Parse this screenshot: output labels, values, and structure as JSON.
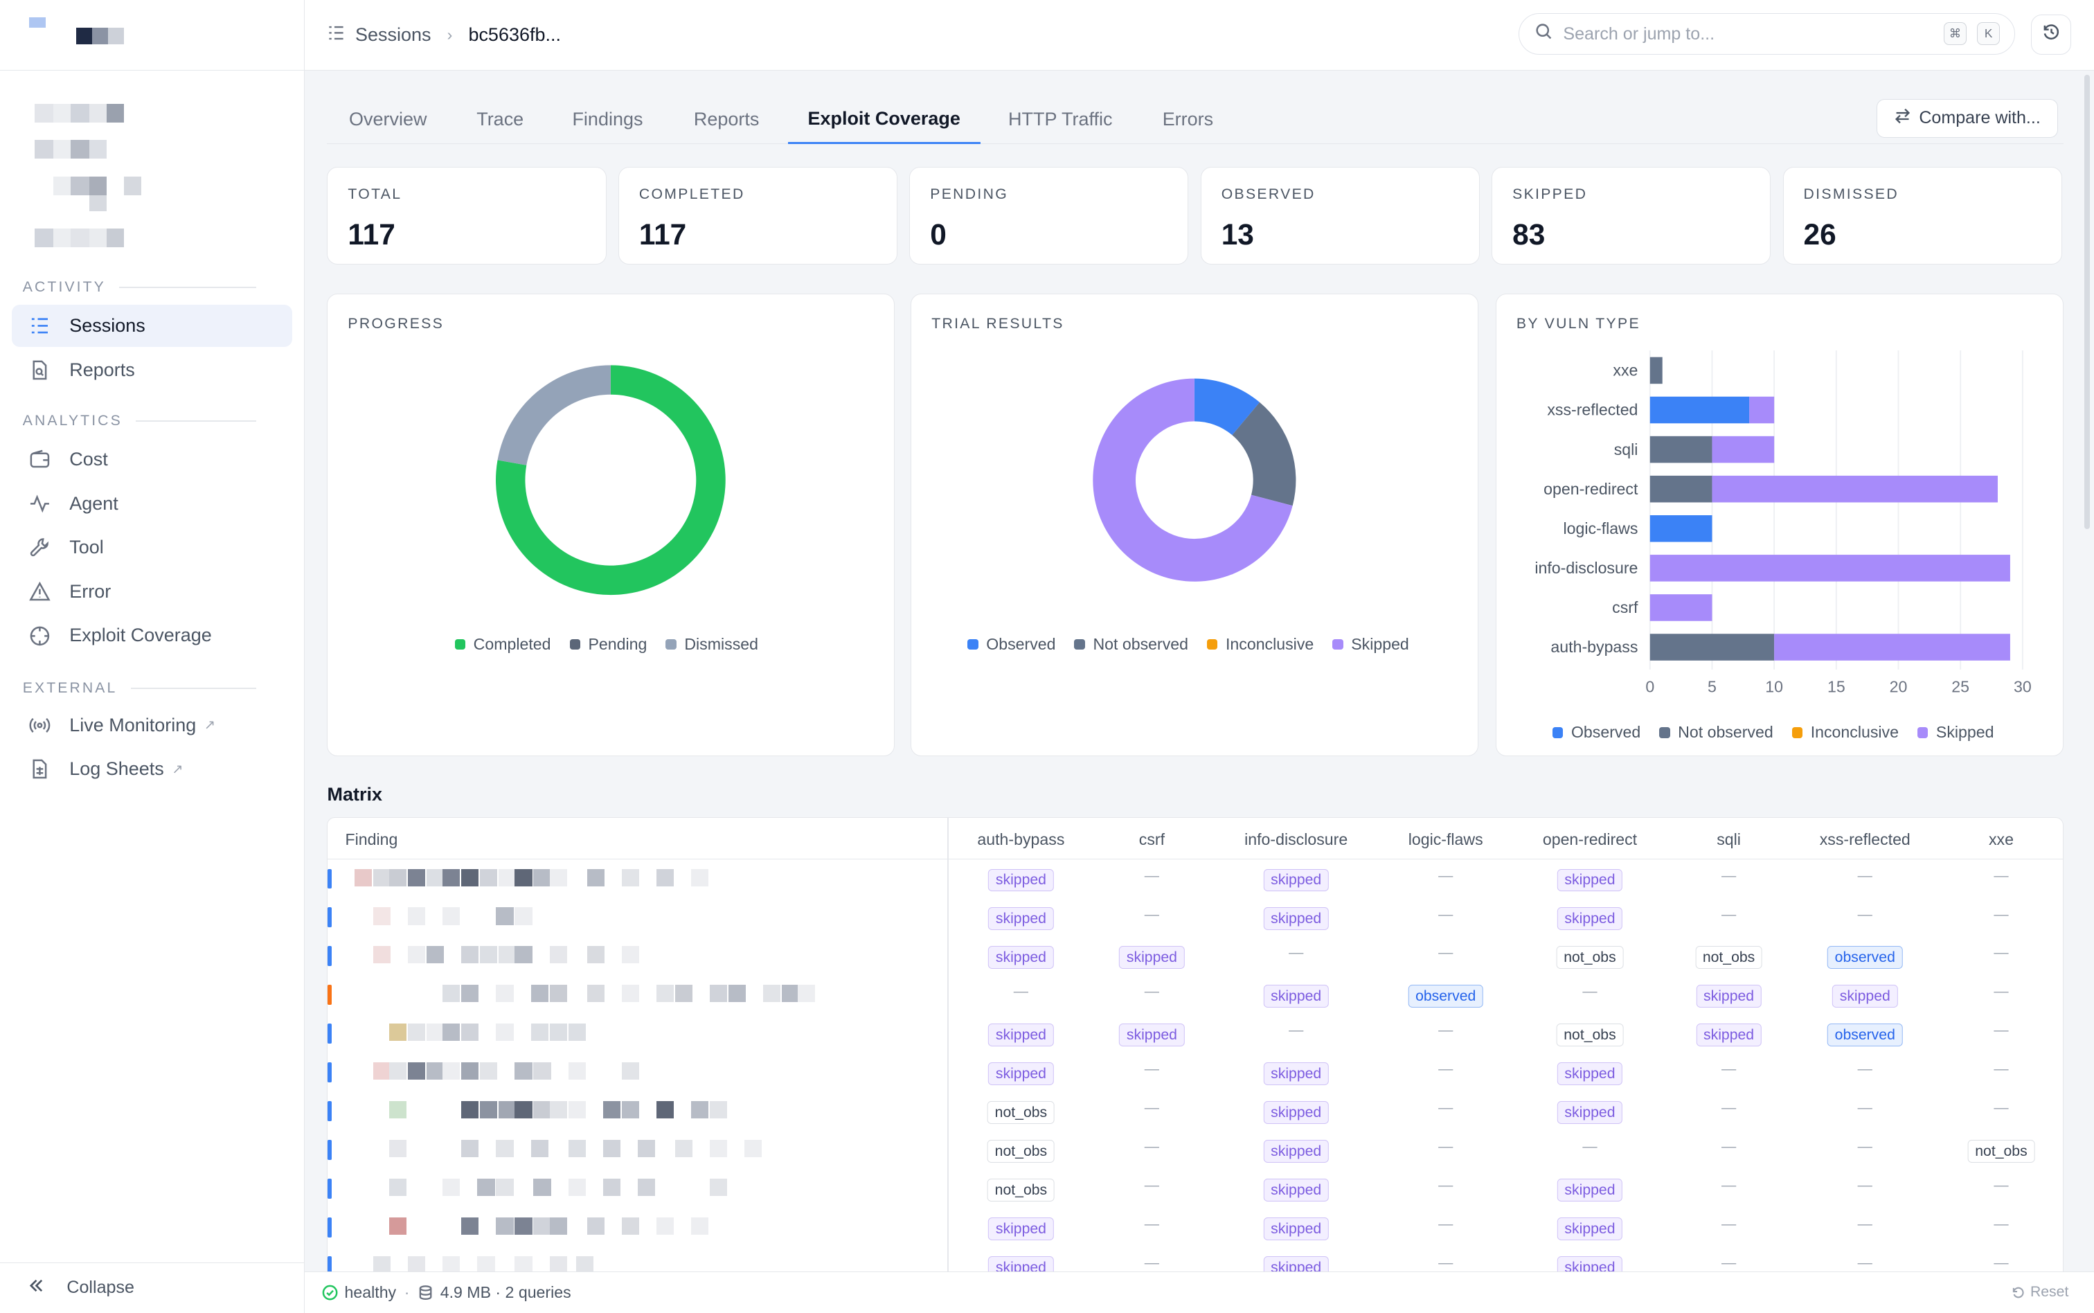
{
  "sidebar": {
    "sections": [
      {
        "title": "ACTIVITY",
        "items": [
          {
            "label": "Sessions",
            "icon": "list-icon",
            "active": true
          },
          {
            "label": "Reports",
            "icon": "document-search-icon"
          }
        ]
      },
      {
        "title": "ANALYTICS",
        "items": [
          {
            "label": "Cost",
            "icon": "wallet-icon"
          },
          {
            "label": "Agent",
            "icon": "activity-icon"
          },
          {
            "label": "Tool",
            "icon": "wrench-icon"
          },
          {
            "label": "Error",
            "icon": "warning-icon"
          },
          {
            "label": "Exploit Coverage",
            "icon": "crosshair-icon"
          }
        ]
      },
      {
        "title": "EXTERNAL",
        "items": [
          {
            "label": "Live Monitoring",
            "icon": "broadcast-icon",
            "external": true
          },
          {
            "label": "Log Sheets",
            "icon": "sheet-icon",
            "external": true
          }
        ]
      }
    ],
    "collapse_label": "Collapse"
  },
  "topbar": {
    "breadcrumb_root": "Sessions",
    "breadcrumb_current": "bc5636fb...",
    "search_placeholder": "Search or jump to...",
    "shortcut_keys": [
      "⌘",
      "K"
    ]
  },
  "tabs": [
    "Overview",
    "Trace",
    "Findings",
    "Reports",
    "Exploit Coverage",
    "HTTP Traffic",
    "Errors"
  ],
  "active_tab": "Exploit Coverage",
  "compare_label": "Compare with...",
  "stats": [
    {
      "label": "TOTAL",
      "value": "117"
    },
    {
      "label": "COMPLETED",
      "value": "117"
    },
    {
      "label": "PENDING",
      "value": "0"
    },
    {
      "label": "OBSERVED",
      "value": "13"
    },
    {
      "label": "SKIPPED",
      "value": "83"
    },
    {
      "label": "DISMISSED",
      "value": "26"
    }
  ],
  "colors": {
    "completed": "#22c55e",
    "pending": "#5b6678",
    "dismissed": "#94a3b8",
    "observed": "#3b82f6",
    "not_observed": "#64748b",
    "inconclusive": "#f59e0b",
    "skipped": "#a78bfa",
    "accent": "#3b82f6"
  },
  "chart_data": [
    {
      "type": "pie",
      "title": "PROGRESS",
      "labels": [
        "Completed",
        "Pending",
        "Dismissed"
      ],
      "values": [
        91,
        0,
        26
      ]
    },
    {
      "type": "pie",
      "title": "TRIAL RESULTS",
      "labels": [
        "Observed",
        "Not observed",
        "Inconclusive",
        "Skipped"
      ],
      "values": [
        13,
        21,
        0,
        83
      ]
    },
    {
      "type": "bar",
      "orientation": "horizontal",
      "stacked": true,
      "title": "BY VULN TYPE",
      "categories": [
        "xxe",
        "xss-reflected",
        "sqli",
        "open-redirect",
        "logic-flaws",
        "info-disclosure",
        "csrf",
        "auth-bypass"
      ],
      "series": [
        {
          "name": "Observed",
          "values": [
            0,
            8,
            0,
            0,
            5,
            0,
            0,
            0
          ]
        },
        {
          "name": "Not observed",
          "values": [
            1,
            0,
            5,
            5,
            0,
            0,
            0,
            10
          ]
        },
        {
          "name": "Inconclusive",
          "values": [
            0,
            0,
            0,
            0,
            0,
            0,
            0,
            0
          ]
        },
        {
          "name": "Skipped",
          "values": [
            0,
            2,
            5,
            23,
            0,
            29,
            5,
            19
          ]
        }
      ],
      "xticks": [
        "0",
        "5",
        "10",
        "15",
        "20",
        "25",
        "30"
      ],
      "xlim": [
        0,
        30
      ],
      "grid": true,
      "legend": "bottom"
    }
  ],
  "matrix": {
    "title": "Matrix",
    "finding_header": "Finding",
    "columns": [
      "auth-bypass",
      "csrf",
      "info-disclosure",
      "logic-flaws",
      "open-redirect",
      "sqli",
      "xss-reflected",
      "xxe"
    ],
    "dash": "—",
    "rows": [
      {
        "mark": "#3b82f6",
        "cells": [
          "skipped",
          "",
          "skipped",
          "",
          "skipped",
          "",
          "",
          ""
        ]
      },
      {
        "mark": "#3b82f6",
        "cells": [
          "skipped",
          "",
          "skipped",
          "",
          "skipped",
          "",
          "",
          ""
        ]
      },
      {
        "mark": "#3b82f6",
        "cells": [
          "skipped",
          "skipped",
          "",
          "",
          "not_obs",
          "not_obs",
          "observed",
          ""
        ]
      },
      {
        "mark": "#f97316",
        "cells": [
          "",
          "",
          "skipped",
          "observed",
          "",
          "skipped",
          "skipped",
          ""
        ]
      },
      {
        "mark": "#3b82f6",
        "cells": [
          "skipped",
          "skipped",
          "",
          "",
          "not_obs",
          "skipped",
          "observed",
          ""
        ]
      },
      {
        "mark": "#3b82f6",
        "cells": [
          "skipped",
          "",
          "skipped",
          "",
          "skipped",
          "",
          "",
          ""
        ]
      },
      {
        "mark": "#3b82f6",
        "cells": [
          "not_obs",
          "",
          "skipped",
          "",
          "skipped",
          "",
          "",
          ""
        ]
      },
      {
        "mark": "#3b82f6",
        "cells": [
          "not_obs",
          "",
          "skipped",
          "",
          "",
          "",
          "",
          "not_obs"
        ]
      },
      {
        "mark": "#3b82f6",
        "cells": [
          "not_obs",
          "",
          "skipped",
          "",
          "skipped",
          "",
          "",
          ""
        ]
      },
      {
        "mark": "#3b82f6",
        "cells": [
          "skipped",
          "",
          "skipped",
          "",
          "skipped",
          "",
          "",
          ""
        ]
      },
      {
        "mark": "#3b82f6",
        "cells": [
          "skipped",
          "",
          "skipped",
          "",
          "skipped",
          "",
          "",
          ""
        ]
      }
    ]
  },
  "status": {
    "health": "healthy",
    "db": "4.9 MB · 2 queries",
    "reset_label": "Reset"
  }
}
